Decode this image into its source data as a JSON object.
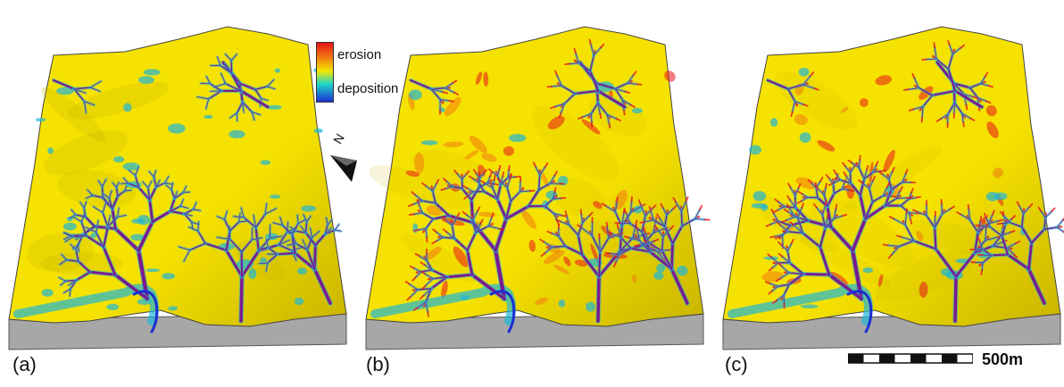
{
  "panels": [
    {
      "label": "(a)",
      "variant": "a"
    },
    {
      "label": "(b)",
      "variant": "b"
    },
    {
      "label": "(c)",
      "variant": "c"
    }
  ],
  "legend": {
    "erosion_label": "erosion",
    "deposition_label": "deposition",
    "colors": {
      "erosion": "#e8141b",
      "mid": "#f5e600",
      "deposition": "#1fb7d6",
      "deep": "#1b2fd1"
    }
  },
  "north_arrow": {
    "label": "N"
  },
  "scale": {
    "label": "500m"
  },
  "colors": {
    "terrain": "#f6e200",
    "terrain_shadow": "#c9b400",
    "channel": "#7a1a8f",
    "deposit": "#29c6e0",
    "base": "#a7a7a7"
  }
}
